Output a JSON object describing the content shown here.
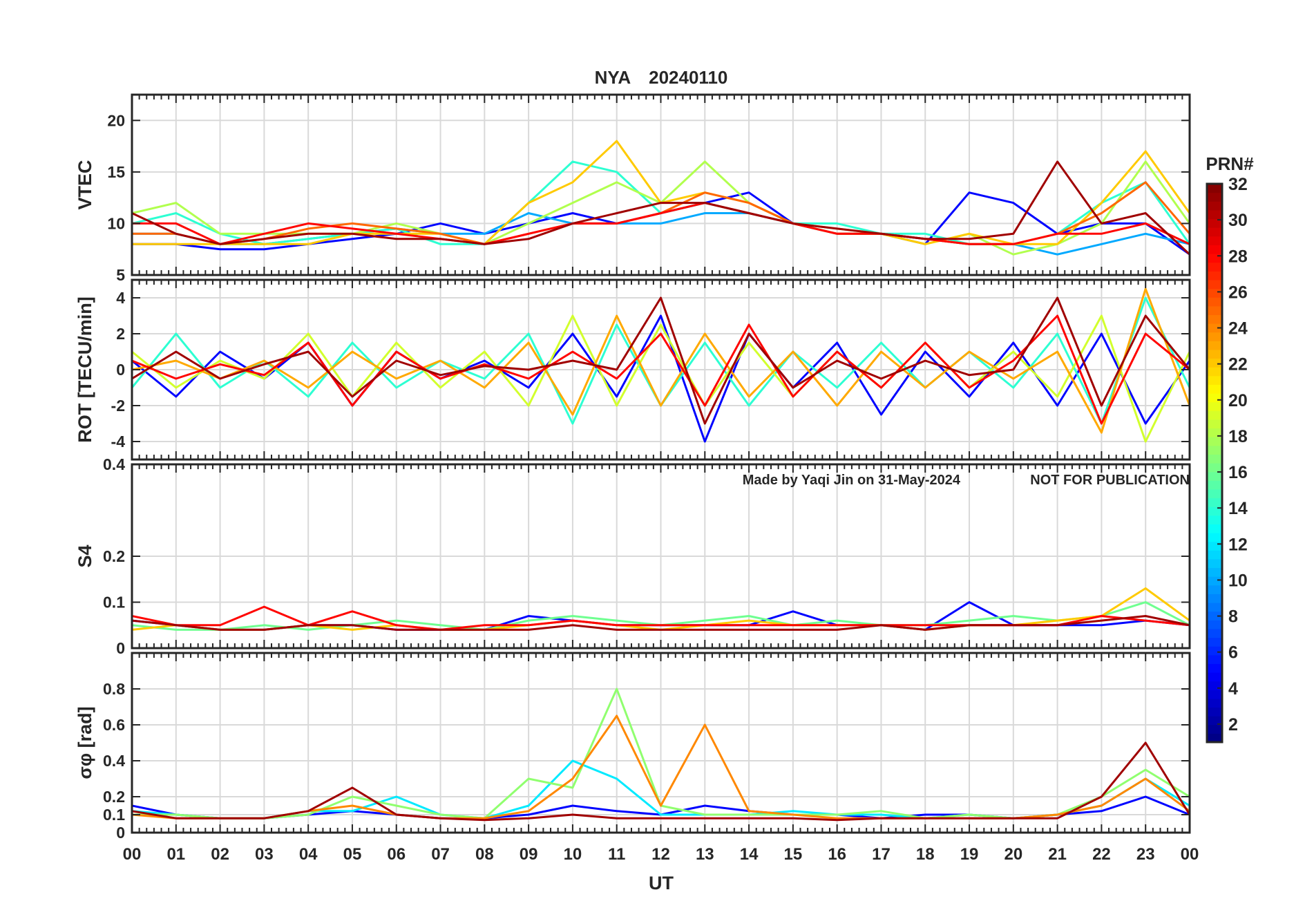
{
  "title": {
    "station": "NYA",
    "date": "20240110",
    "color": "#ff0000"
  },
  "watermark": {
    "made_by": "Made by Yaqi Jin on 31-May-2024",
    "notice": "NOT FOR PUBLICATION",
    "color": "#8c8c8c"
  },
  "colorbar": {
    "label": "PRN#",
    "range": [
      1,
      32
    ],
    "colormap": "jet",
    "ticks": [
      "2",
      "4",
      "6",
      "8",
      "10",
      "12",
      "14",
      "16",
      "18",
      "20",
      "22",
      "24",
      "26",
      "28",
      "30",
      "32"
    ]
  },
  "xaxis": {
    "label": "UT",
    "ticks": [
      "00",
      "01",
      "02",
      "03",
      "04",
      "05",
      "06",
      "07",
      "08",
      "09",
      "10",
      "11",
      "12",
      "13",
      "14",
      "15",
      "16",
      "17",
      "18",
      "19",
      "20",
      "21",
      "22",
      "23",
      "00"
    ]
  },
  "chart_data": [
    {
      "type": "line",
      "panel": "vtec",
      "ylabel": "VTEC",
      "ylim": [
        5,
        22.5
      ],
      "yticks": [
        "5",
        "10",
        "15",
        "20"
      ],
      "grid": true,
      "x": [
        0,
        1,
        2,
        3,
        4,
        5,
        6,
        7,
        8,
        9,
        10,
        11,
        12,
        13,
        14,
        15,
        16,
        17,
        18,
        19,
        20,
        21,
        22,
        23,
        24
      ],
      "series": [
        {
          "prn": 5,
          "values": [
            8,
            8,
            7.5,
            7.5,
            8,
            8.5,
            9,
            10,
            9,
            10,
            11,
            10,
            11,
            12,
            13,
            10,
            9,
            9,
            8,
            13,
            12,
            9,
            10,
            10,
            7
          ]
        },
        {
          "prn": 10,
          "values": [
            9,
            9,
            8,
            8,
            8.5,
            9,
            9.5,
            9,
            9,
            11,
            10,
            10,
            10,
            11,
            11,
            10,
            9,
            9,
            8.5,
            8,
            8,
            7,
            8,
            9,
            8
          ]
        },
        {
          "prn": 14,
          "values": [
            10,
            11,
            9,
            8,
            8.5,
            9,
            9.5,
            8,
            8,
            12,
            16,
            15,
            11,
            12,
            11,
            10,
            10,
            9,
            9,
            8,
            8,
            9,
            12,
            14,
            8
          ]
        },
        {
          "prn": 18,
          "values": [
            11,
            12,
            9,
            9,
            9,
            9,
            10,
            9,
            8,
            10,
            12,
            14,
            12,
            16,
            12,
            10,
            9.5,
            9,
            8,
            9,
            7,
            8,
            10,
            16,
            10
          ]
        },
        {
          "prn": 22,
          "values": [
            8,
            8,
            8,
            8,
            8,
            9,
            9,
            9,
            8,
            12,
            14,
            18,
            12,
            13,
            12,
            10,
            9,
            9,
            8,
            9,
            8,
            8,
            12,
            17,
            11
          ]
        },
        {
          "prn": 25,
          "values": [
            9,
            9,
            8,
            8.5,
            9.5,
            10,
            9.5,
            9,
            8,
            9,
            10,
            10,
            11,
            13,
            12,
            10,
            9,
            9,
            8.5,
            8,
            8,
            9,
            11,
            14,
            9
          ]
        },
        {
          "prn": 28,
          "values": [
            10,
            10,
            8,
            9,
            10,
            9.5,
            9,
            8.5,
            8,
            9,
            10,
            10,
            11,
            12,
            11,
            10,
            9,
            9,
            8.5,
            8,
            8,
            9,
            9,
            10,
            8
          ]
        },
        {
          "prn": 31,
          "values": [
            11,
            9,
            8,
            8.5,
            9,
            9,
            8.5,
            8.5,
            8,
            8.5,
            10,
            11,
            12,
            12,
            11,
            10,
            9.5,
            9,
            8.5,
            8.5,
            9,
            16,
            10,
            11,
            7
          ]
        }
      ]
    },
    {
      "type": "line",
      "panel": "rot",
      "ylabel": "ROT [TECU/min]",
      "ylim": [
        -5,
        5
      ],
      "yticks": [
        "-4",
        "-2",
        "0",
        "2",
        "4"
      ],
      "grid": true,
      "x": [
        0,
        1,
        2,
        3,
        4,
        5,
        6,
        7,
        8,
        9,
        10,
        11,
        12,
        13,
        14,
        15,
        16,
        17,
        18,
        19,
        20,
        21,
        22,
        23,
        24
      ],
      "series": [
        {
          "prn": 5,
          "values": [
            0.5,
            -1.5,
            1,
            -0.5,
            1.5,
            -2,
            1,
            -0.5,
            0.5,
            -1,
            2,
            -1.5,
            3,
            -4,
            2,
            -1,
            1.5,
            -2.5,
            1,
            -1.5,
            1.5,
            -2,
            2,
            -3,
            0.5
          ]
        },
        {
          "prn": 14,
          "values": [
            -1,
            2,
            -1,
            0.5,
            -1.5,
            1.5,
            -1,
            0.5,
            -0.5,
            2,
            -3,
            2.5,
            -2,
            1.5,
            -2,
            1,
            -1,
            1.5,
            -1,
            1,
            -1,
            2,
            -3,
            4,
            -1
          ]
        },
        {
          "prn": 19,
          "values": [
            1,
            -1,
            0.5,
            -0.5,
            2,
            -1.5,
            1.5,
            -1,
            1,
            -2,
            3,
            -2,
            2.5,
            -2,
            1.5,
            -1.5,
            1,
            -1,
            1.5,
            -1,
            1,
            -1.5,
            3,
            -4,
            1
          ]
        },
        {
          "prn": 23,
          "values": [
            0,
            0.5,
            -0.5,
            0.5,
            -1,
            1,
            -0.5,
            0.5,
            -1,
            1.5,
            -2.5,
            3,
            -2,
            2,
            -1.5,
            1,
            -2,
            1,
            -1,
            1,
            -0.5,
            1,
            -3.5,
            4.5,
            -2
          ]
        },
        {
          "prn": 28,
          "values": [
            0.5,
            -0.5,
            0.3,
            -0.3,
            1.5,
            -2,
            1,
            -0.5,
            0.3,
            -0.5,
            1,
            -0.5,
            2,
            -2,
            2.5,
            -1.5,
            1,
            -1,
            1.5,
            -1,
            0.5,
            3,
            -3,
            2,
            0
          ]
        },
        {
          "prn": 31,
          "values": [
            -0.5,
            1,
            -0.5,
            0.3,
            1,
            -1.5,
            0.5,
            -0.3,
            0.2,
            0,
            0.5,
            0,
            4,
            -3,
            2,
            -1,
            0.5,
            -0.5,
            0.5,
            -0.3,
            0,
            4,
            -2,
            3,
            0
          ]
        }
      ]
    },
    {
      "type": "line",
      "panel": "s4",
      "ylabel": "S4",
      "ylim": [
        0,
        0.4
      ],
      "yticks": [
        "0",
        "0.1",
        "0.2",
        "0.4"
      ],
      "grid": true,
      "x": [
        0,
        1,
        2,
        3,
        4,
        5,
        6,
        7,
        8,
        9,
        10,
        11,
        12,
        13,
        14,
        15,
        16,
        17,
        18,
        19,
        20,
        21,
        22,
        23,
        24
      ],
      "series": [
        {
          "prn": 5,
          "values": [
            0.06,
            0.05,
            0.04,
            0.04,
            0.05,
            0.05,
            0.04,
            0.04,
            0.04,
            0.07,
            0.06,
            0.05,
            0.05,
            0.05,
            0.05,
            0.08,
            0.05,
            0.05,
            0.04,
            0.1,
            0.05,
            0.05,
            0.05,
            0.06,
            0.05
          ]
        },
        {
          "prn": 16,
          "values": [
            0.05,
            0.04,
            0.04,
            0.05,
            0.04,
            0.05,
            0.06,
            0.05,
            0.04,
            0.06,
            0.07,
            0.06,
            0.05,
            0.06,
            0.07,
            0.05,
            0.06,
            0.05,
            0.05,
            0.06,
            0.07,
            0.06,
            0.07,
            0.1,
            0.05
          ]
        },
        {
          "prn": 22,
          "values": [
            0.04,
            0.05,
            0.04,
            0.04,
            0.05,
            0.04,
            0.05,
            0.04,
            0.04,
            0.05,
            0.06,
            0.05,
            0.04,
            0.05,
            0.06,
            0.05,
            0.05,
            0.05,
            0.04,
            0.05,
            0.05,
            0.06,
            0.07,
            0.13,
            0.06
          ]
        },
        {
          "prn": 28,
          "values": [
            0.07,
            0.05,
            0.05,
            0.09,
            0.05,
            0.08,
            0.05,
            0.04,
            0.05,
            0.05,
            0.06,
            0.05,
            0.05,
            0.05,
            0.05,
            0.05,
            0.05,
            0.05,
            0.05,
            0.05,
            0.05,
            0.05,
            0.07,
            0.06,
            0.05
          ]
        },
        {
          "prn": 31,
          "values": [
            0.06,
            0.05,
            0.04,
            0.04,
            0.05,
            0.05,
            0.04,
            0.04,
            0.04,
            0.04,
            0.05,
            0.04,
            0.04,
            0.04,
            0.04,
            0.04,
            0.04,
            0.05,
            0.04,
            0.05,
            0.05,
            0.05,
            0.06,
            0.07,
            0.05
          ]
        }
      ]
    },
    {
      "type": "line",
      "panel": "sigma_phi",
      "ylabel": "σφ [rad]",
      "ylim": [
        0,
        1
      ],
      "yticks": [
        "0",
        "0.1",
        "0.2",
        "0.4",
        "0.6",
        "0.8"
      ],
      "grid": true,
      "x": [
        0,
        1,
        2,
        3,
        4,
        5,
        6,
        7,
        8,
        9,
        10,
        11,
        12,
        13,
        14,
        15,
        16,
        17,
        18,
        19,
        20,
        21,
        22,
        23,
        24
      ],
      "series": [
        {
          "prn": 5,
          "values": [
            0.15,
            0.1,
            0.08,
            0.08,
            0.1,
            0.12,
            0.1,
            0.08,
            0.08,
            0.1,
            0.15,
            0.12,
            0.1,
            0.15,
            0.12,
            0.1,
            0.1,
            0.08,
            0.1,
            0.1,
            0.08,
            0.1,
            0.12,
            0.2,
            0.1
          ]
        },
        {
          "prn": 12,
          "values": [
            0.12,
            0.1,
            0.08,
            0.08,
            0.12,
            0.12,
            0.2,
            0.1,
            0.08,
            0.15,
            0.4,
            0.3,
            0.1,
            0.1,
            0.1,
            0.12,
            0.1,
            0.1,
            0.08,
            0.1,
            0.08,
            0.1,
            0.15,
            0.3,
            0.15
          ]
        },
        {
          "prn": 17,
          "values": [
            0.1,
            0.1,
            0.08,
            0.08,
            0.1,
            0.2,
            0.15,
            0.1,
            0.08,
            0.3,
            0.25,
            0.8,
            0.15,
            0.1,
            0.1,
            0.1,
            0.1,
            0.12,
            0.08,
            0.1,
            0.08,
            0.1,
            0.2,
            0.35,
            0.2
          ]
        },
        {
          "prn": 24,
          "values": [
            0.1,
            0.08,
            0.08,
            0.08,
            0.12,
            0.15,
            0.1,
            0.08,
            0.08,
            0.12,
            0.3,
            0.65,
            0.15,
            0.6,
            0.12,
            0.1,
            0.08,
            0.08,
            0.08,
            0.08,
            0.08,
            0.1,
            0.15,
            0.3,
            0.12
          ]
        },
        {
          "prn": 31,
          "values": [
            0.12,
            0.08,
            0.08,
            0.08,
            0.12,
            0.25,
            0.1,
            0.08,
            0.07,
            0.08,
            0.1,
            0.08,
            0.08,
            0.08,
            0.08,
            0.08,
            0.07,
            0.08,
            0.08,
            0.08,
            0.08,
            0.08,
            0.2,
            0.5,
            0.1
          ]
        }
      ]
    }
  ]
}
